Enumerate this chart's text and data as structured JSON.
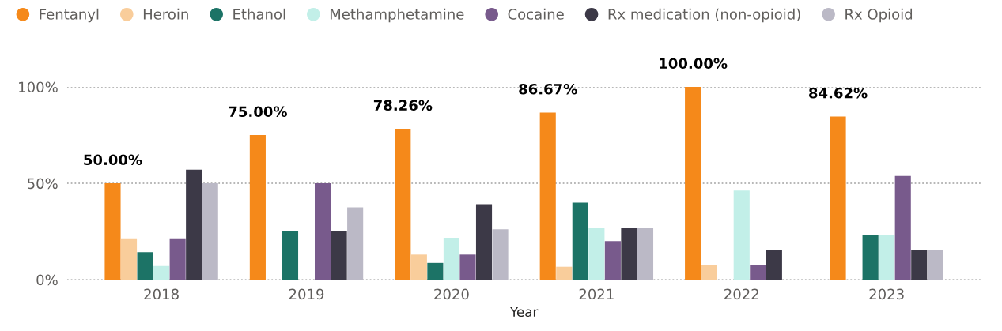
{
  "chart_data": {
    "type": "bar",
    "xlabel": "Year",
    "categories": [
      "2018",
      "2019",
      "2020",
      "2021",
      "2022",
      "2023"
    ],
    "series": [
      {
        "name": "Fentanyl",
        "color": "#f5891a",
        "values": [
          50.0,
          75.0,
          78.26,
          86.67,
          100.0,
          84.62
        ],
        "value_labels": [
          "50.00%",
          "75.00%",
          "78.26%",
          "86.67%",
          "100.00%",
          "84.62%"
        ]
      },
      {
        "name": "Heroin",
        "color": "#f9cd9b",
        "values": [
          21.4,
          0,
          13.0,
          6.7,
          7.7,
          0
        ]
      },
      {
        "name": "Ethanol",
        "color": "#1c7366",
        "values": [
          14.3,
          25.0,
          8.7,
          40.0,
          0,
          23.1
        ]
      },
      {
        "name": "Methamphetamine",
        "color": "#c2efe8",
        "values": [
          7.1,
          0,
          21.7,
          26.7,
          46.2,
          23.1
        ]
      },
      {
        "name": "Cocaine",
        "color": "#785a8c",
        "values": [
          21.4,
          50.0,
          13.0,
          20.0,
          7.7,
          53.8
        ]
      },
      {
        "name": "Rx medication (non-opioid)",
        "color": "#3c3947",
        "values": [
          57.1,
          25.0,
          39.1,
          26.7,
          15.4,
          15.4
        ]
      },
      {
        "name": "Rx Opioid",
        "color": "#bbb9c6",
        "values": [
          50.0,
          37.5,
          26.1,
          26.7,
          0,
          15.4
        ]
      }
    ],
    "ylim": [
      0,
      100
    ],
    "yticks": [
      {
        "value": 0,
        "label": "0%"
      },
      {
        "value": 50,
        "label": "50%"
      },
      {
        "value": 100,
        "label": "100%"
      }
    ],
    "grid": "y",
    "line_style": "dotted",
    "legend": "top left"
  }
}
